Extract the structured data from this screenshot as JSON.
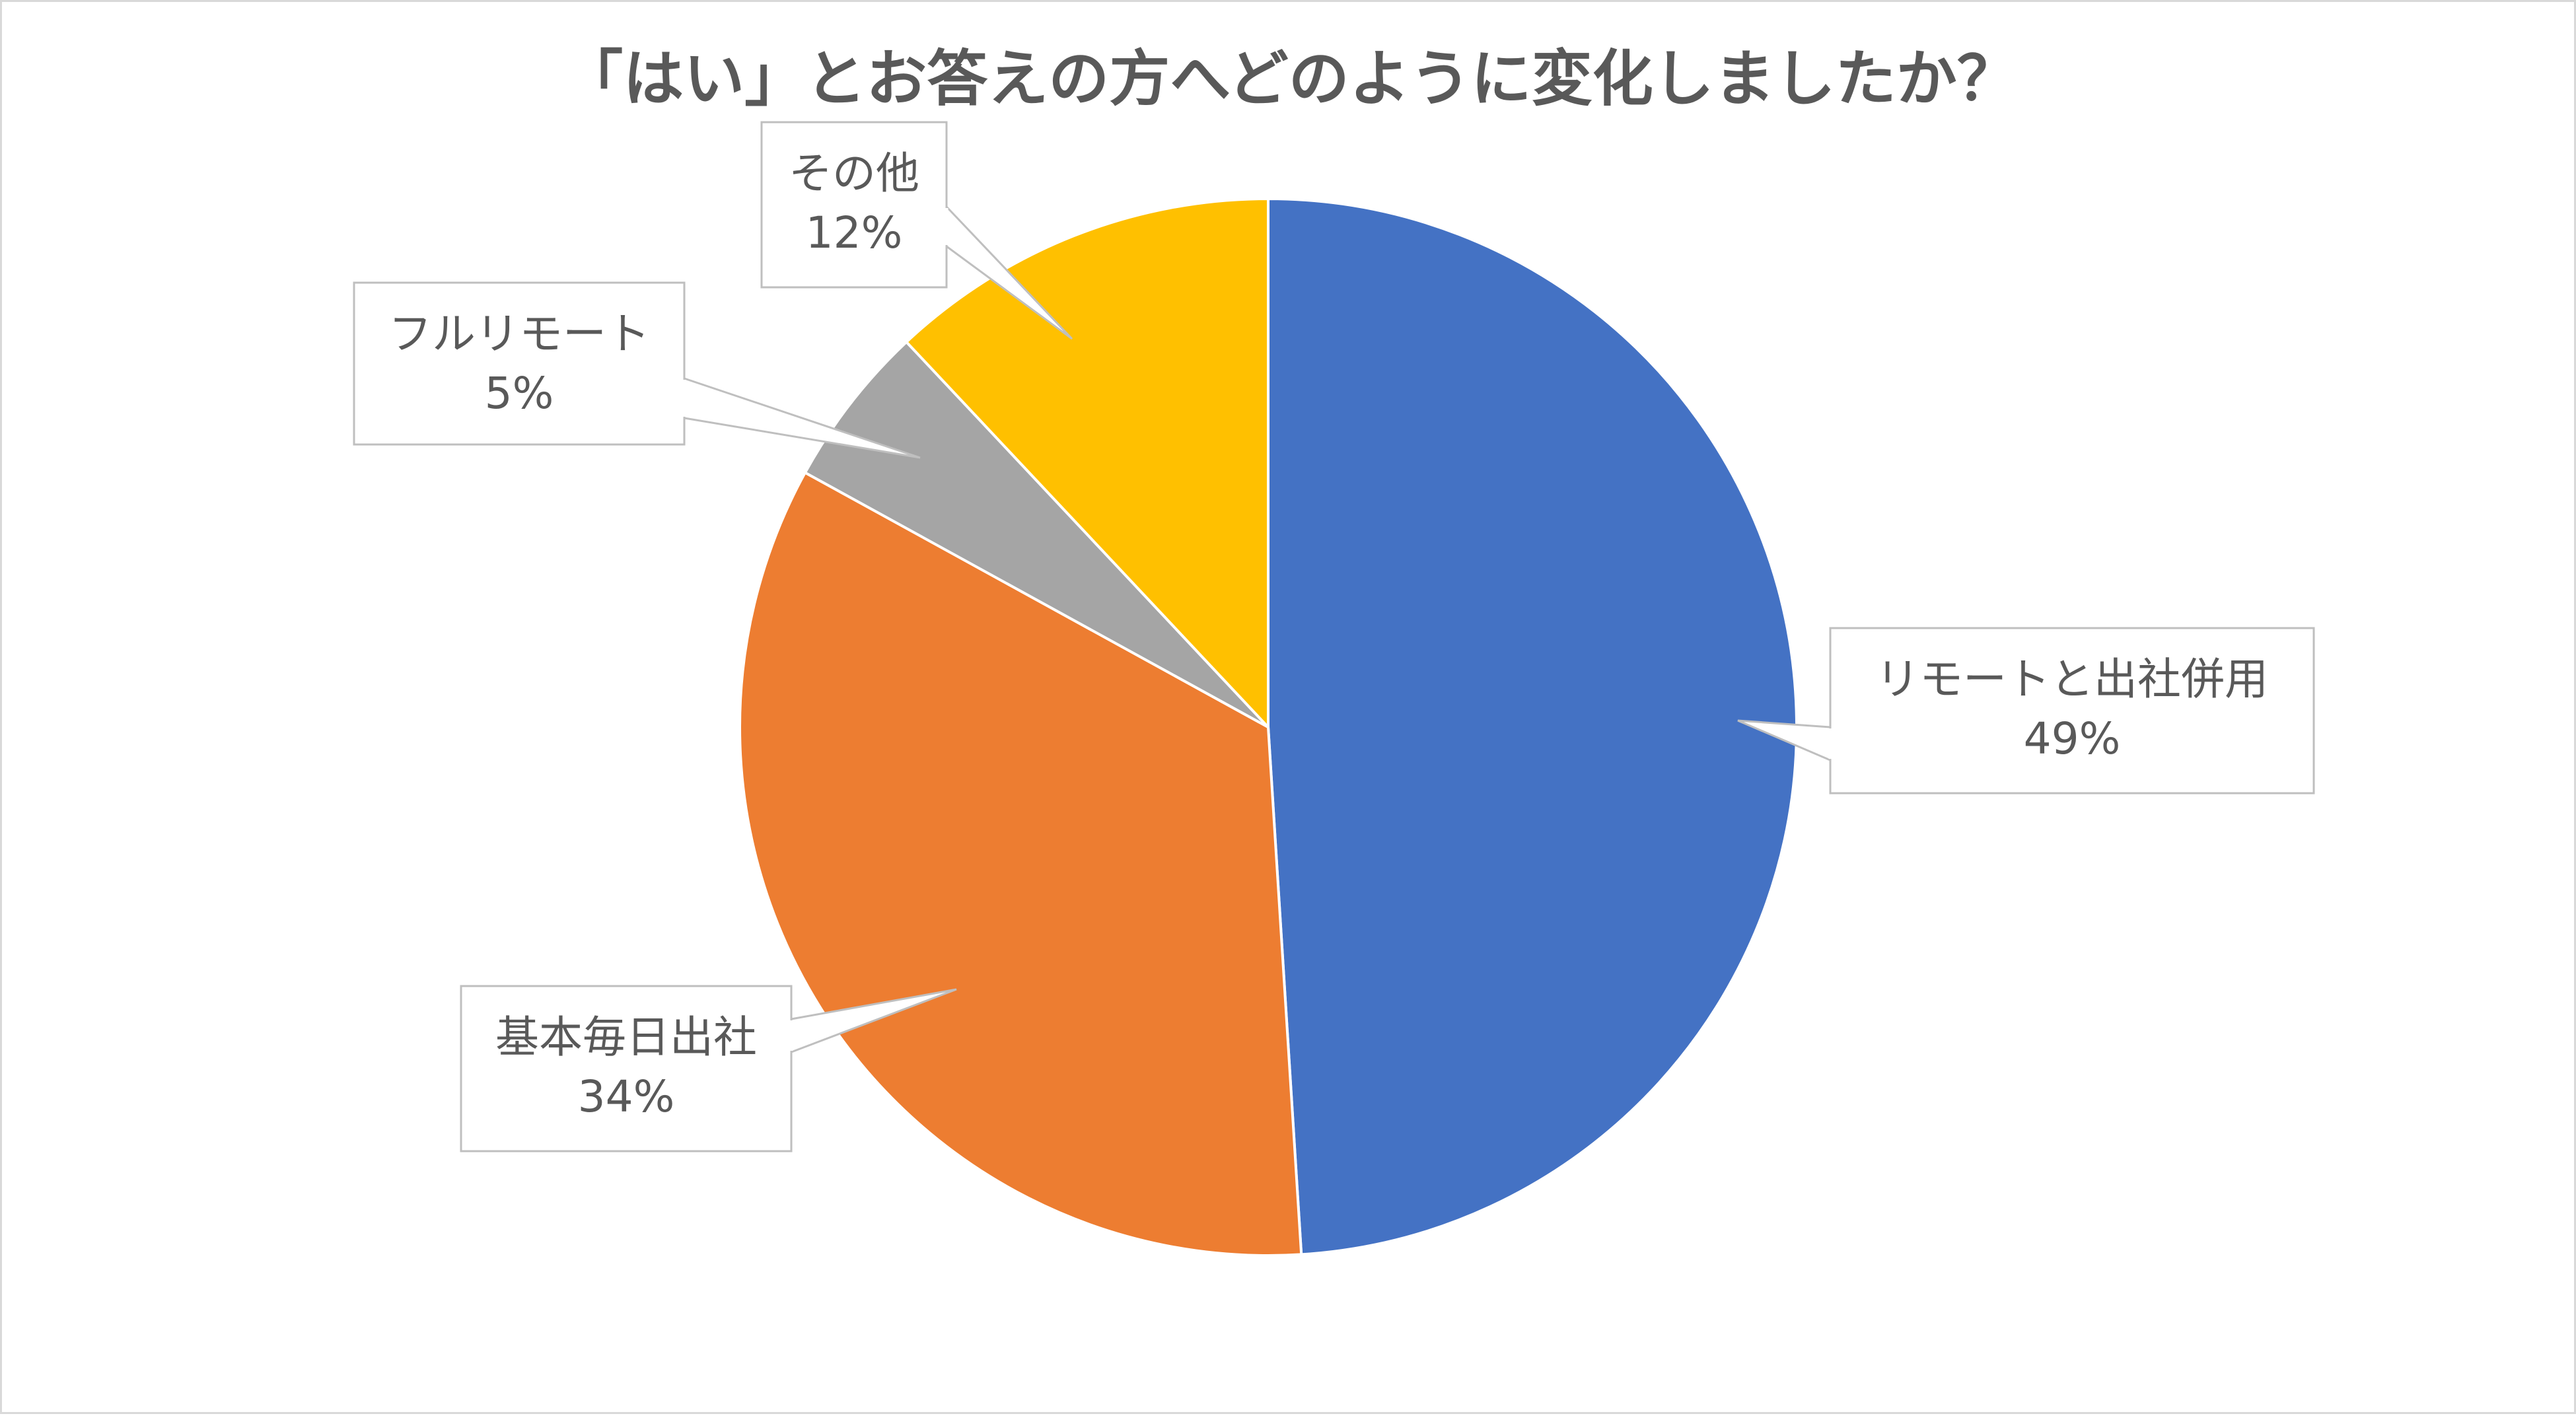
{
  "chart_data": {
    "type": "pie",
    "title": "「はい」とお答えの方へどのように変化しましたか？",
    "slices": [
      {
        "label": "リモートと出社併用",
        "percent_label": "49%",
        "value": 49,
        "color": "#4472C4"
      },
      {
        "label": "基本毎日出社",
        "percent_label": "34%",
        "value": 34,
        "color": "#ED7D31"
      },
      {
        "label": "フルリモート",
        "percent_label": "5%",
        "value": 5,
        "color": "#A5A5A5"
      },
      {
        "label": "その他",
        "percent_label": "12%",
        "value": 12,
        "color": "#FFC000"
      }
    ],
    "start_angle_deg": 0,
    "direction": "clockwise",
    "legend": "none",
    "data_labels": "callouts"
  }
}
